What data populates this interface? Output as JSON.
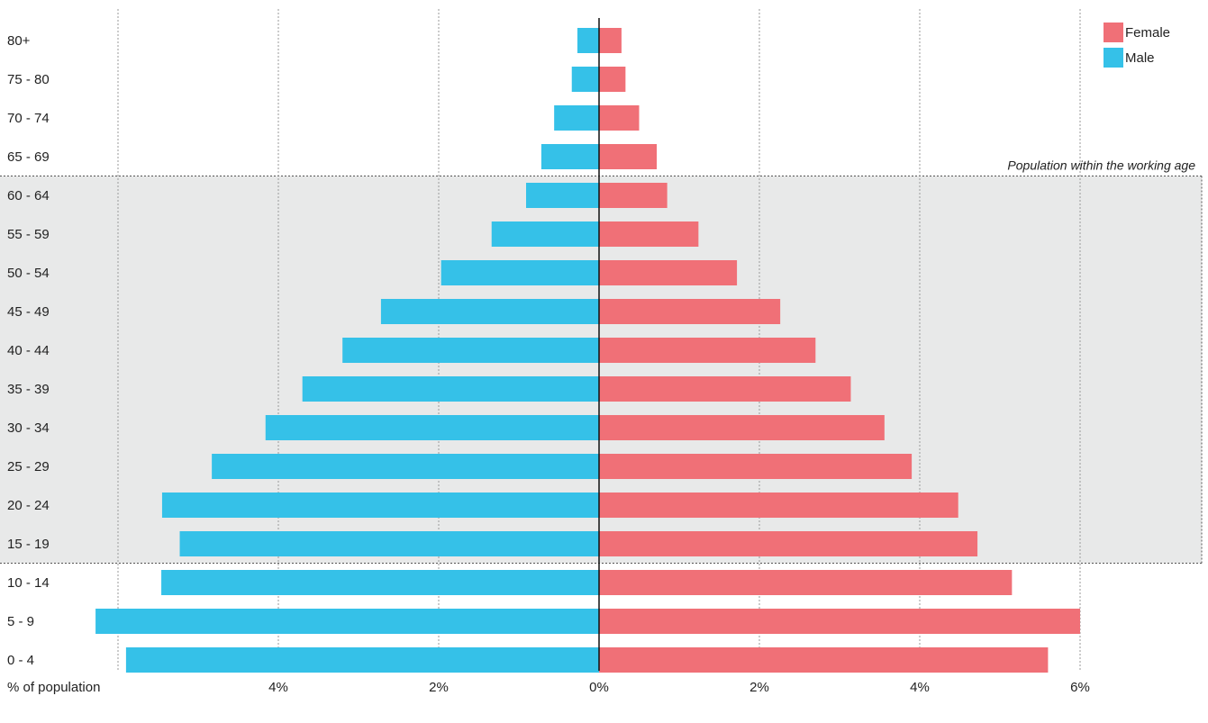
{
  "chart_data": {
    "type": "bar",
    "orientation": "horizontal",
    "layout": "population-pyramid",
    "categories": [
      "0 - 4",
      "5 - 9",
      "10 - 14",
      "15 - 19",
      "20 - 24",
      "25 - 29",
      "30 - 34",
      "35 - 39",
      "40 - 44",
      "45 - 49",
      "50 - 54",
      "55 - 59",
      "60 - 64",
      "65 - 69",
      "70 - 74",
      "75 - 80",
      "80+"
    ],
    "series": [
      {
        "name": "Male",
        "side": "left",
        "color": "#35C1E8",
        "values": [
          5.9,
          6.28,
          5.46,
          5.23,
          5.45,
          4.83,
          4.16,
          3.7,
          3.2,
          2.72,
          1.97,
          1.34,
          0.91,
          0.72,
          0.56,
          0.34,
          0.27
        ]
      },
      {
        "name": "Female",
        "side": "right",
        "color": "#F07077",
        "values": [
          5.6,
          6.0,
          5.15,
          4.72,
          4.48,
          3.9,
          3.56,
          3.14,
          2.7,
          2.26,
          1.72,
          1.24,
          0.85,
          0.72,
          0.5,
          0.33,
          0.28
        ]
      }
    ],
    "xlim": [
      -6,
      6
    ],
    "x_ticks": [
      {
        "value": -4,
        "label": "4%"
      },
      {
        "value": -2,
        "label": "2%"
      },
      {
        "value": 0,
        "label": "0%"
      },
      {
        "value": 2,
        "label": "2%"
      },
      {
        "value": 4,
        "label": "4%"
      },
      {
        "value": 6,
        "label": "6%"
      }
    ],
    "xlabel": "% of population",
    "grid": true,
    "legend": {
      "position": "top-right",
      "entries": [
        {
          "label": "Female",
          "color": "#F07077"
        },
        {
          "label": "Male",
          "color": "#35C1E8"
        }
      ]
    },
    "annotation": {
      "text": "Population within the working age",
      "from_category": "15 - 19",
      "to_category": "60 - 64",
      "fill": "#E8E9E9"
    }
  }
}
